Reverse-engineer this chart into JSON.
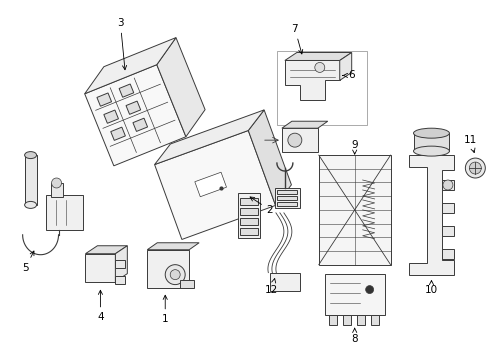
{
  "background_color": "#ffffff",
  "line_color": "#3a3a3a",
  "label_color": "#000000",
  "figsize": [
    4.89,
    3.6
  ],
  "dpi": 100,
  "lw": 0.7
}
